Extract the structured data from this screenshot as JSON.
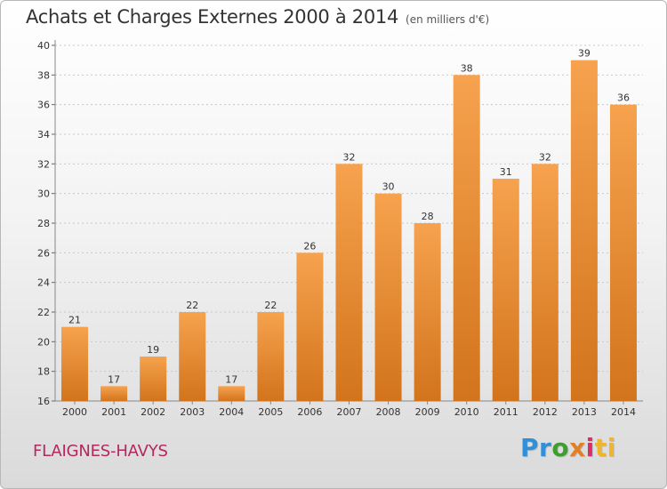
{
  "header": {
    "title": "Achats et Charges Externes 2000 à 2014",
    "unit": "(en milliers d'€)"
  },
  "commune": "FLAIGNES-HAVYS",
  "brand": {
    "letters": [
      "Pr",
      "o",
      "x",
      "i",
      "ti"
    ],
    "name": "Proxiti"
  },
  "colors": {
    "bar_top": "#f6a24e",
    "bar_bottom": "#d2741c",
    "grid": "#c8c8c8",
    "commune": "#b5275f"
  },
  "chart_data": {
    "type": "bar",
    "title": "Achats et Charges Externes 2000 à 2014",
    "subtitle": "(en milliers d'€)",
    "categories": [
      "2000",
      "2001",
      "2002",
      "2003",
      "2004",
      "2005",
      "2006",
      "2007",
      "2008",
      "2009",
      "2010",
      "2011",
      "2012",
      "2013",
      "2014"
    ],
    "values": [
      21,
      17,
      19,
      22,
      17,
      22,
      26,
      32,
      30,
      28,
      38,
      31,
      32,
      39,
      36
    ],
    "ylim": [
      16,
      40
    ],
    "yticks": [
      16,
      18,
      20,
      22,
      24,
      26,
      28,
      30,
      32,
      34,
      36,
      38,
      40
    ],
    "grid": true,
    "legend": "none"
  }
}
